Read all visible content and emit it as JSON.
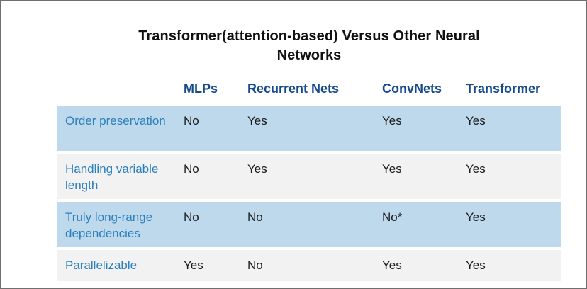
{
  "chart_data": {
    "type": "table",
    "title": "Transformer(attention-based) Versus Other Neural Networks",
    "columns": [
      "MLPs",
      "Recurrent Nets",
      "ConvNets",
      "Transformer"
    ],
    "rows": [
      {
        "label": "Order preservation",
        "values": [
          "No",
          "Yes",
          "Yes",
          "Yes"
        ]
      },
      {
        "label": "Handling variable length",
        "values": [
          "No",
          "Yes",
          "Yes",
          "Yes"
        ]
      },
      {
        "label": "Truly long-range dependencies",
        "values": [
          "No",
          "No",
          "No*",
          "Yes"
        ]
      },
      {
        "label": "Parallelizable",
        "values": [
          "Yes",
          "No",
          "Yes",
          "Yes"
        ]
      }
    ],
    "footnote_marker": "*",
    "layout": {
      "row_stripe_pattern": "alternating blue/gray starting blue",
      "header_position": "top, no background"
    }
  },
  "colors": {
    "header_text": "#174a8c",
    "row_label_text": "#2b7fbc",
    "value_text": "#1a1a1a",
    "row_blue_bg": "#bed9ec",
    "row_gray_bg": "#f2f2f2",
    "title_text": "#111111",
    "frame_border": "#6f6f6f"
  }
}
